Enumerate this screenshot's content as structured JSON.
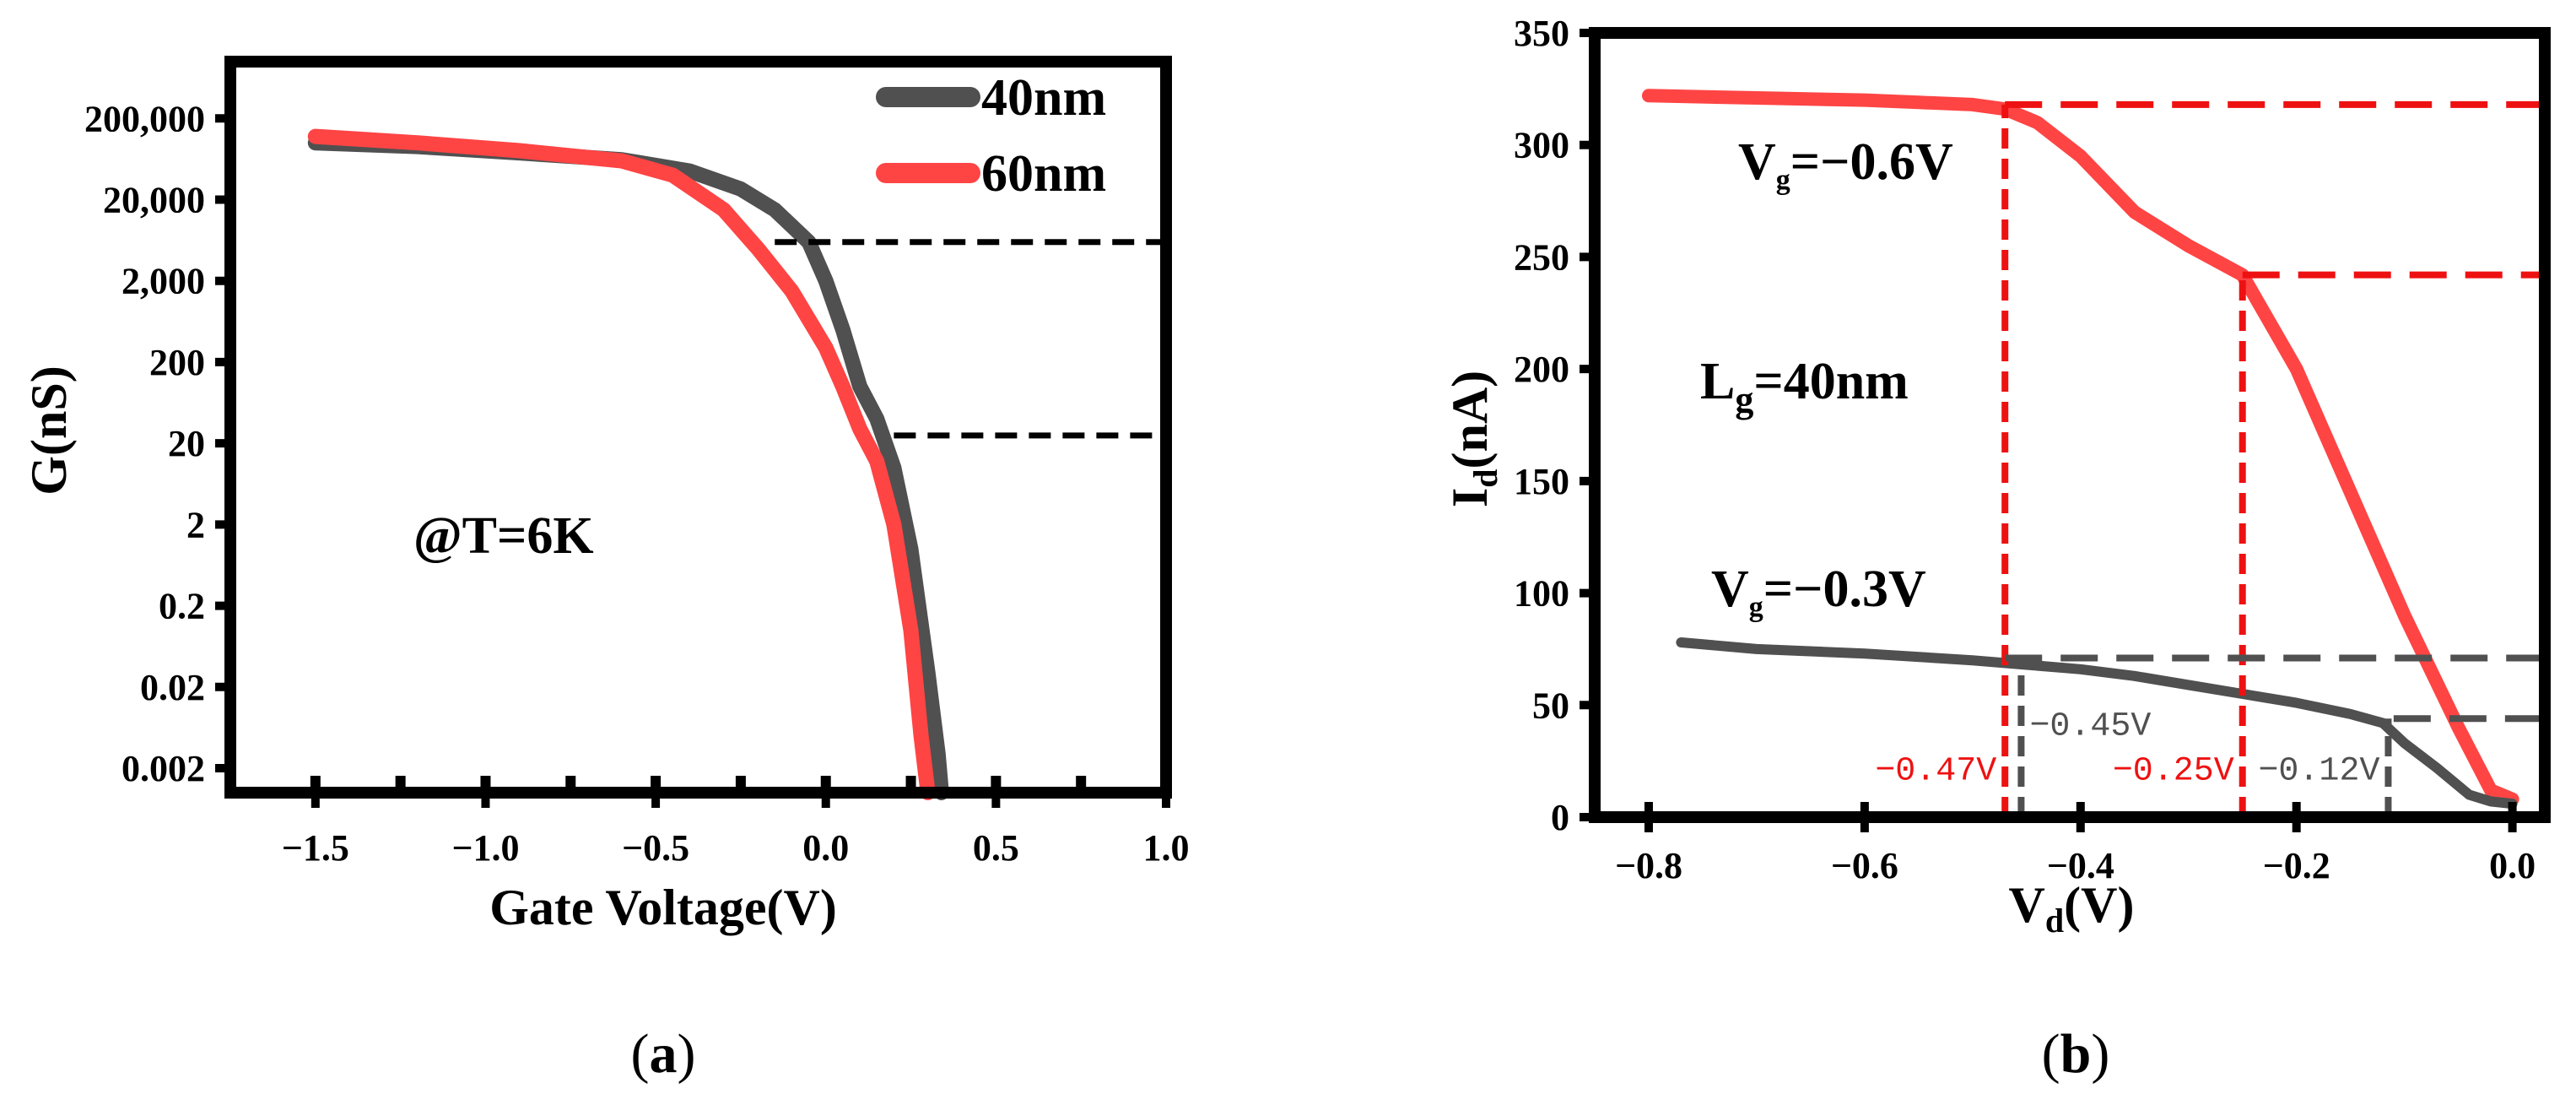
{
  "chart_data": [
    {
      "panel": "(a)",
      "type": "line",
      "xlabel": "Gate Voltage(V)",
      "ylabel": "G(nS)",
      "yscale": "log",
      "xlim": [
        -1.75,
        1.0
      ],
      "ylim": [
        0.001,
        1000000
      ],
      "xticks": [
        -1.5,
        -1.0,
        -0.5,
        0.0,
        0.5,
        1.0
      ],
      "xtick_labels": [
        "−1.5",
        "−1.0",
        "−0.5",
        "0.0",
        "0.5",
        "1.0"
      ],
      "yticks": [
        0.002,
        0.02,
        0.2,
        2,
        20,
        200,
        2000,
        20000,
        200000
      ],
      "ytick_labels": [
        "0.002",
        "0.02",
        "0.2",
        "2",
        "20",
        "200",
        "2,000",
        "20,000",
        "200,000"
      ],
      "annotation": "@T=6K",
      "legend_position": "top-right",
      "series": [
        {
          "name": "40nm",
          "color": "#505050",
          "x": [
            -1.5,
            -1.2,
            -0.9,
            -0.6,
            -0.4,
            -0.25,
            -0.15,
            -0.05,
            0.0,
            0.05,
            0.1,
            0.15,
            0.2,
            0.25,
            0.3,
            0.33,
            0.34
          ],
          "y": [
            100000,
            90000,
            75000,
            62000,
            45000,
            27000,
            15000,
            6000,
            2000,
            500,
            100,
            40,
            10,
            1,
            0.03,
            0.003,
            0.001
          ]
        },
        {
          "name": "60nm",
          "color": "#ff4444",
          "x": [
            -1.5,
            -1.2,
            -0.9,
            -0.6,
            -0.45,
            -0.3,
            -0.2,
            -0.1,
            0.0,
            0.05,
            0.1,
            0.15,
            0.2,
            0.25,
            0.28,
            0.3
          ],
          "y": [
            120000,
            100000,
            80000,
            60000,
            40000,
            15000,
            5000,
            1500,
            300,
            100,
            30,
            12,
            2,
            0.1,
            0.005,
            0.001
          ]
        }
      ],
      "reference_lines": [
        {
          "y": 6000,
          "x_from": -0.15,
          "x_to": 1.0,
          "color": "#000000"
        },
        {
          "y": 25,
          "x_from": 0.2,
          "x_to": 1.0,
          "color": "#000000"
        }
      ]
    },
    {
      "panel": "(b)",
      "type": "line",
      "xlabel_main": "V",
      "xlabel_sub": "d",
      "xlabel_tail": "(V)",
      "ylabel_main": "I",
      "ylabel_sub": "d",
      "ylabel_tail": "(nA)",
      "xlim": [
        -0.85,
        0.03
      ],
      "ylim": [
        0,
        350
      ],
      "xticks": [
        -0.8,
        -0.6,
        -0.4,
        -0.2,
        0.0
      ],
      "xtick_labels": [
        "−0.8",
        "−0.6",
        "−0.4",
        "−0.2",
        "0.0"
      ],
      "yticks": [
        0,
        50,
        100,
        150,
        200,
        250,
        300,
        350
      ],
      "ytick_labels": [
        "0",
        "50",
        "100",
        "150",
        "200",
        "250",
        "300",
        "350"
      ],
      "annotation_main": "L",
      "annotation_sub": "g",
      "annotation_tail": "=40nm",
      "series": [
        {
          "name": "Vg=−0.6V",
          "label_main": "V",
          "label_sub": "g",
          "label_tail": "=−0.6V",
          "color": "#ff4444",
          "x": [
            -0.8,
            -0.7,
            -0.6,
            -0.55,
            -0.5,
            -0.47,
            -0.44,
            -0.4,
            -0.35,
            -0.3,
            -0.25,
            -0.2,
            -0.15,
            -0.1,
            -0.05,
            -0.02,
            0.0
          ],
          "y": [
            322,
            321,
            320,
            319,
            318,
            316,
            310,
            295,
            270,
            255,
            242,
            200,
            145,
            90,
            40,
            12,
            8
          ]
        },
        {
          "name": "Vg=−0.3V",
          "label_main": "V",
          "label_sub": "g",
          "label_tail": "=−0.3V",
          "color": "#505050",
          "x": [
            -0.77,
            -0.7,
            -0.6,
            -0.5,
            -0.45,
            -0.4,
            -0.35,
            -0.3,
            -0.25,
            -0.2,
            -0.15,
            -0.12,
            -0.1,
            -0.07,
            -0.04,
            -0.02,
            0.0
          ],
          "y": [
            78,
            75,
            73,
            70,
            68,
            66,
            63,
            59,
            55,
            51,
            46,
            42,
            33,
            22,
            10,
            7,
            6
          ]
        }
      ],
      "reference_lines": [
        {
          "orient": "h",
          "y": 318,
          "x_from": -0.47,
          "x_to": 0.03,
          "color": "#ee1111"
        },
        {
          "orient": "h",
          "y": 242,
          "x_from": -0.25,
          "x_to": 0.03,
          "color": "#ee1111"
        },
        {
          "orient": "v",
          "x": -0.47,
          "y_from": 0,
          "y_to": 318,
          "color": "#ee1111"
        },
        {
          "orient": "v",
          "x": -0.25,
          "y_from": 0,
          "y_to": 242,
          "color": "#ee1111"
        },
        {
          "orient": "h",
          "y": 71,
          "x_from": -0.47,
          "x_to": 0.03,
          "color": "#505050"
        },
        {
          "orient": "h",
          "y": 44,
          "x_from": -0.11,
          "x_to": 0.03,
          "color": "#505050"
        },
        {
          "orient": "v",
          "x": -0.455,
          "y_from": 0,
          "y_to": 68,
          "color": "#505050"
        },
        {
          "orient": "v",
          "x": -0.115,
          "y_from": 0,
          "y_to": 44,
          "color": "#505050"
        }
      ],
      "value_labels": [
        {
          "text": "−0.47V",
          "x": -0.47,
          "color": "#ee1111",
          "side": "left",
          "y": 22
        },
        {
          "text": "−0.45V",
          "x": -0.455,
          "color": "#505050",
          "side": "right",
          "y": 42
        },
        {
          "text": "−0.25V",
          "x": -0.25,
          "color": "#ee1111",
          "side": "left",
          "y": 22
        },
        {
          "text": "−0.12V",
          "x": -0.115,
          "color": "#505050",
          "side": "left",
          "y": 22
        }
      ]
    }
  ],
  "captions": {
    "a": {
      "open": "(",
      "letter": "a",
      "close": ")"
    },
    "b": {
      "open": "(",
      "letter": "b",
      "close": ")"
    }
  }
}
